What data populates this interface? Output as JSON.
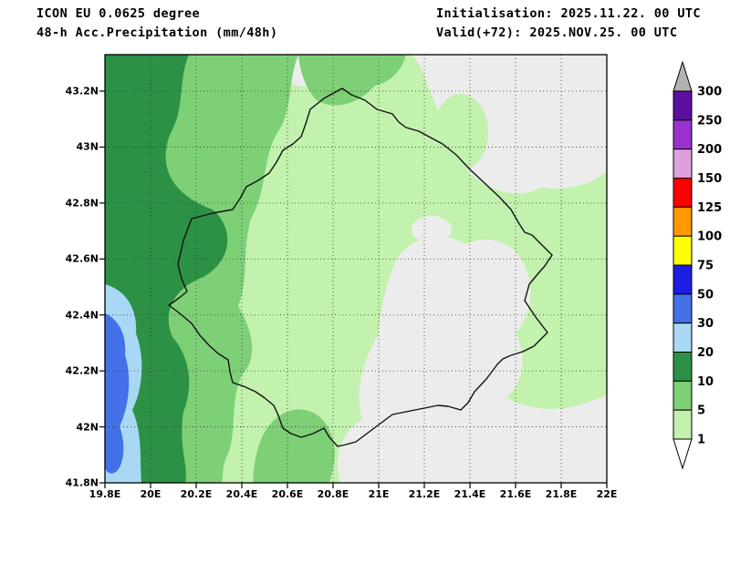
{
  "header": {
    "model": "ICON EU 0.0625 degree",
    "product": "48-h Acc.Precipitation (mm/48h)",
    "init": "Initialisation: 2025.11.22. 00 UTC",
    "valid": "Valid(+72): 2025.NOV.25. 00 UTC"
  },
  "chart_data": {
    "type": "heatmap",
    "title": "48-h Acc.Precipitation (mm/48h)",
    "model": "ICON EU 0.0625 degree",
    "initialisation": "2025.11.22. 00 UTC",
    "valid": "Valid(+72): 2025.NOV.25. 00 UTC",
    "units": "mm/48h",
    "x_axis": {
      "ticks": [
        "19.8E",
        "20E",
        "20.2E",
        "20.4E",
        "20.6E",
        "20.8E",
        "21E",
        "21.2E",
        "21.4E",
        "21.6E",
        "21.8E",
        "22E"
      ],
      "range": [
        19.8,
        22.0
      ],
      "grid": "dotted"
    },
    "y_axis": {
      "ticks": [
        "43.2N",
        "43N",
        "42.8N",
        "42.6N",
        "42.4N",
        "42.2N",
        "42N",
        "41.8N"
      ],
      "range": [
        41.8,
        43.33
      ],
      "grid": "dotted"
    },
    "legend": {
      "levels": [
        1,
        5,
        10,
        20,
        30,
        50,
        75,
        100,
        125,
        150,
        200,
        250,
        300
      ],
      "colors": {
        "gt300": "#b2b2b2",
        "250-300": "#5c0f9e",
        "200-250": "#9a32cd",
        "150-200": "#dda0dd",
        "125-150": "#ff0000",
        "100-125": "#ff9900",
        "75-100": "#ffff00",
        "50-75": "#1c1ce2",
        "30-50": "#4470e8",
        "20-30": "#a8d8f4",
        "10-20": "#2c9144",
        "5-10": "#7ed077",
        "1-5": "#c3f1ae",
        "lt1": "#ffffff",
        "map_lt1": "#ececec"
      }
    },
    "field_regions": [
      {
        "region": "most of the domain",
        "value_mm": "1-10"
      },
      {
        "region": "western mountain band ~19.9E-20.4E",
        "value_mm": "10-20"
      },
      {
        "region": "southwest coastal corner 19.8E-20E / 41.8N-42.6N",
        "value_mm": "20-50"
      },
      {
        "region": "east, centre-south and bottom-right areas",
        "value_mm": "<1"
      }
    ]
  },
  "colorbar": {
    "labels": [
      "300",
      "250",
      "200",
      "150",
      "125",
      "100",
      "75",
      "50",
      "30",
      "20",
      "10",
      "5",
      "1"
    ],
    "order_top_to_bottom": [
      "gt300",
      "250-300",
      "200-250",
      "150-200",
      "125-150",
      "100-125",
      "75-100",
      "50-75",
      "30-50",
      "20-30",
      "10-20",
      "5-10",
      "1-5",
      "lt1"
    ]
  }
}
